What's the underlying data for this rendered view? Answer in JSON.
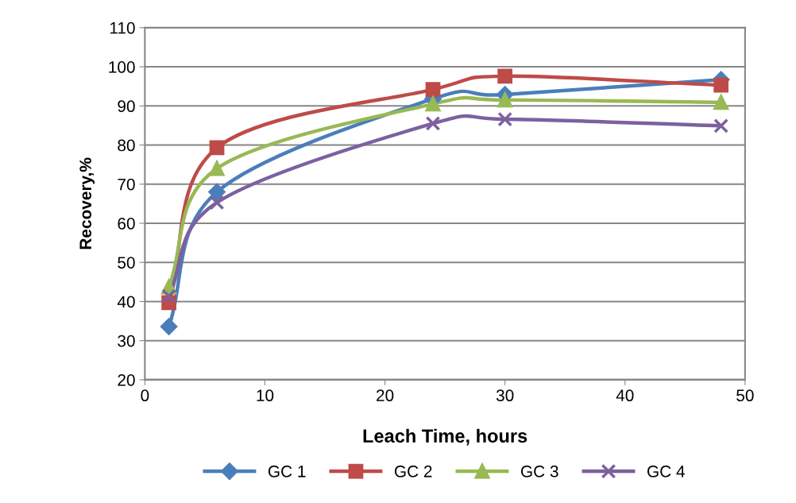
{
  "chart_data": {
    "type": "line",
    "xlabel": "Leach Time, hours",
    "ylabel": "Recovery,%",
    "x": [
      2,
      6,
      24,
      30,
      48
    ],
    "series": [
      {
        "name": "GC 1",
        "color": "#4a7ebb",
        "marker": "diamond",
        "values": [
          33.6,
          68.0,
          91.8,
          92.9,
          96.7
        ]
      },
      {
        "name": "GC 2",
        "color": "#be4b48",
        "marker": "square",
        "values": [
          39.7,
          79.3,
          94.2,
          97.6,
          95.3
        ]
      },
      {
        "name": "GC 3",
        "color": "#98b954",
        "marker": "triangle",
        "values": [
          43.7,
          74.0,
          90.5,
          91.5,
          90.9
        ]
      },
      {
        "name": "GC 4",
        "color": "#7d60a0",
        "marker": "cross",
        "values": [
          41.4,
          65.3,
          85.5,
          86.6,
          84.9
        ]
      }
    ],
    "xlim": [
      0,
      50
    ],
    "xticks": [
      0,
      10,
      20,
      30,
      40,
      50
    ],
    "ylim": [
      20,
      110
    ],
    "yticks": [
      20,
      30,
      40,
      50,
      60,
      70,
      80,
      90,
      100,
      110
    ],
    "grid": "y",
    "legend": "bottom",
    "line_style": "solid"
  }
}
